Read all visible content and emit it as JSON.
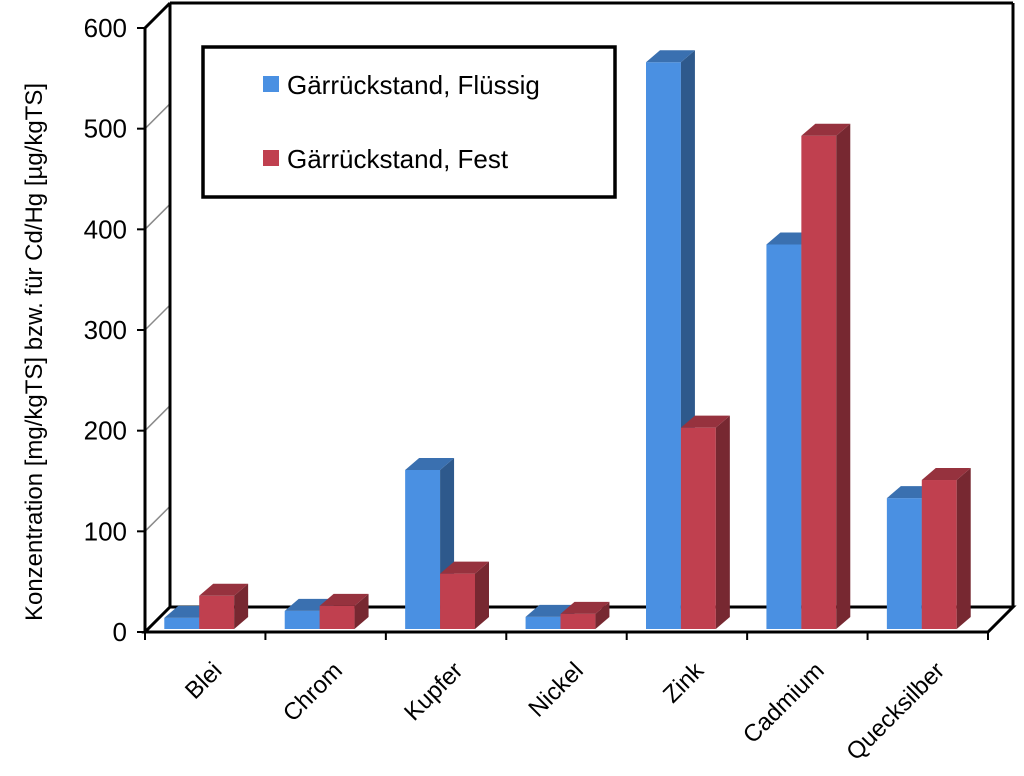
{
  "chart_data": {
    "type": "bar",
    "style": "3d-clustered-column",
    "title": "",
    "xlabel": "",
    "ylabel": "Konzentration [mg/kgTS] bzw. für Cd/Hg [µg/kgTS]",
    "ylim": [
      0,
      600
    ],
    "yticks": [
      "0",
      "100",
      "200",
      "300",
      "400",
      "500",
      "600"
    ],
    "grid": true,
    "legend_position": "top-left",
    "categories": [
      "Blei",
      "Chrom",
      "Kupfer",
      "Nickel",
      "Zink",
      "Cadmium",
      "Quecksilber"
    ],
    "series": [
      {
        "name": "Gärrückstand, Flüssig",
        "color": "#4a90e2",
        "values": [
          11,
          18,
          158,
          12,
          563,
          382,
          130
        ]
      },
      {
        "name": "Gärrückstand, Fest",
        "color": "#c0404f",
        "values": [
          33,
          23,
          55,
          15,
          200,
          490,
          148
        ]
      }
    ]
  }
}
